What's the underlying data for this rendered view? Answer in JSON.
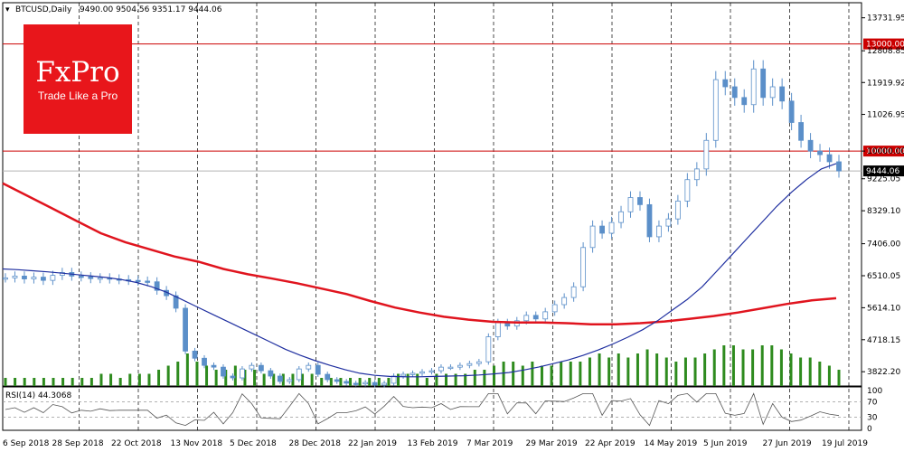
{
  "header": {
    "symbol": "BTCUSD,Daily",
    "ohlc": "9490.00 9504.56 9351.17 9444.06"
  },
  "logo": {
    "brand": "FxPro",
    "tagline": "Trade Like a Pro",
    "color": "#e8161b"
  },
  "colors": {
    "candle": "#5b8fc9",
    "ma_fast": "#1f2fa0",
    "ma_slow": "#e0141e",
    "volume": "#2e8b1e",
    "level_line": "#cc0000",
    "rsi": "#555555"
  },
  "rsi_label": "RSI(14) 44.3068",
  "chart_data": {
    "type": "candlestick",
    "x_ticks": [
      "6 Sep 2018",
      "28 Sep 2018",
      "22 Oct 2018",
      "13 Nov 2018",
      "5 Dec 2018",
      "28 Dec 2018",
      "22 Jan 2019",
      "13 Feb 2019",
      "7 Mar 2019",
      "29 Mar 2019",
      "22 Apr 2019",
      "14 May 2019",
      "5 Jun 2019",
      "27 Jun 2019",
      "19 Jul 2019"
    ],
    "y_ticks": [
      "13731.95",
      "12808.85",
      "11919.92",
      "11026.95",
      "10000.00",
      "9225.05",
      "8329.10",
      "7406.00",
      "6510.05",
      "5614.10",
      "4718.15",
      "3822.20"
    ],
    "ylim": [
      3422,
      14154
    ],
    "levels": [
      {
        "label": "13000.00",
        "value": 13000
      },
      {
        "label": "10000.00",
        "value": 10000
      }
    ],
    "current_price": {
      "label": "9444.06",
      "value": 9444.06
    },
    "close_series": [
      6450,
      6500,
      6420,
      6470,
      6380,
      6520,
      6600,
      6500,
      6480,
      6430,
      6450,
      6420,
      6400,
      6380,
      6360,
      6340,
      6100,
      5950,
      5600,
      4400,
      4200,
      4000,
      3950,
      3700,
      3650,
      3900,
      4000,
      3850,
      3700,
      3550,
      3600,
      3900,
      4000,
      3750,
      3600,
      3550,
      3500,
      3480,
      3520,
      3450,
      3500,
      3700,
      3750,
      3780,
      3820,
      3850,
      3950,
      3950,
      4000,
      4050,
      4100,
      4800,
      5200,
      5100,
      5250,
      5400,
      5300,
      5500,
      5700,
      5900,
      6200,
      7300,
      7900,
      7700,
      8000,
      8300,
      8700,
      8500,
      7600,
      7900,
      8100,
      8600,
      9200,
      9500,
      10300,
      12000,
      11800,
      11500,
      11300,
      12300,
      11500,
      11800,
      11400,
      10800,
      10300,
      10000,
      9900,
      9700,
      9444
    ],
    "ma_fast": [
      6700,
      6680,
      6650,
      6620,
      6580,
      6540,
      6500,
      6460,
      6400,
      6320,
      6200,
      6050,
      5850,
      5650,
      5450,
      5250,
      5050,
      4850,
      4650,
      4450,
      4280,
      4130,
      4000,
      3880,
      3780,
      3720,
      3690,
      3680,
      3680,
      3690,
      3700,
      3710,
      3730,
      3760,
      3800,
      3870,
      3950,
      4050,
      4150,
      4280,
      4430,
      4600,
      4790,
      5000,
      5250,
      5550,
      5850,
      6200,
      6650,
      7100,
      7550,
      8000,
      8450,
      8850,
      9200,
      9500,
      9650
    ],
    "ma_slow": [
      9100,
      8750,
      8400,
      8050,
      7700,
      7450,
      7250,
      7050,
      6900,
      6700,
      6550,
      6430,
      6300,
      6150,
      6000,
      5800,
      5620,
      5480,
      5360,
      5280,
      5220,
      5200,
      5200,
      5180,
      5150,
      5150,
      5180,
      5230,
      5300,
      5380,
      5480,
      5600,
      5720,
      5820,
      5880
    ],
    "rsi": {
      "levels": [
        30,
        70
      ],
      "range": [
        0,
        100
      ],
      "tick_labels": [
        "100",
        "70",
        "30",
        "0"
      ]
    },
    "volume": [
      2,
      2,
      2,
      2,
      2,
      2,
      2,
      2,
      2,
      2,
      3,
      3,
      2,
      3,
      3,
      3,
      4,
      5,
      6,
      8,
      6,
      5,
      4,
      4,
      5,
      4,
      4,
      3,
      3,
      3,
      3,
      3,
      3,
      2,
      2,
      2,
      2,
      2,
      2,
      2,
      2,
      3,
      3,
      3,
      2,
      3,
      3,
      3,
      3,
      4,
      4,
      5,
      6,
      6,
      5,
      6,
      5,
      5,
      6,
      6,
      6,
      7,
      8,
      7,
      8,
      7,
      8,
      9,
      8,
      7,
      6,
      7,
      7,
      8,
      9,
      10,
      10,
      9,
      9,
      10,
      10,
      9,
      8,
      7,
      7,
      6,
      5,
      4
    ]
  }
}
